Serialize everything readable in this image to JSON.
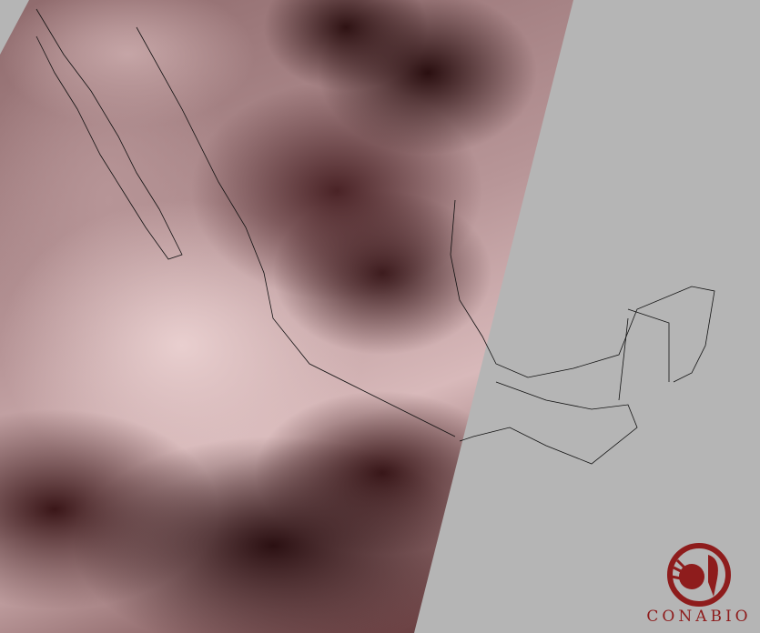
{
  "map": {
    "type": "satellite-swath",
    "region": "Mexico",
    "colors": {
      "background": "#b5b5b5",
      "cloud_dark": "#2a0f10",
      "cloud_light": "#e9cfcf",
      "borders": "#000000"
    }
  },
  "logo": {
    "text": "CONABIO",
    "color": "#8e1c1c"
  }
}
